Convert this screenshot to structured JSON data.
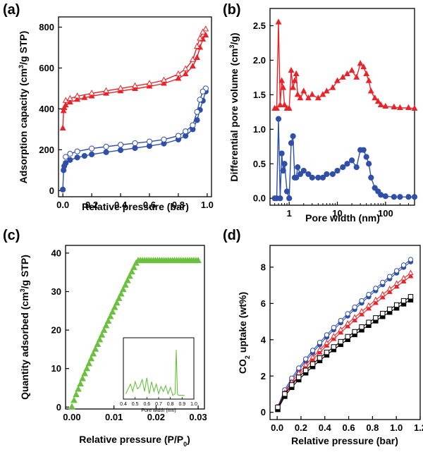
{
  "panels": [
    {
      "label": "(a)",
      "type": "line",
      "xlabel": "Relative pressure (bar)",
      "ylabel_parts": [
        "Adsorption capacity (cm",
        "3",
        "/g STP)"
      ],
      "xlim": [
        -0.03,
        1.03
      ],
      "ylim": [
        -30,
        850
      ],
      "xticks": [
        0.0,
        0.2,
        0.4,
        0.6,
        0.8,
        1.0
      ],
      "xtick_labels": [
        "0.0",
        "0.2",
        "0.4",
        "0.6",
        "0.8",
        "1.0"
      ],
      "yticks": [
        0,
        200,
        400,
        600,
        800
      ],
      "ytick_labels": [
        "0",
        "200",
        "400",
        "600",
        "800"
      ],
      "series": [
        {
          "color": "#e8242a",
          "marker": "triangle",
          "fill": "filled",
          "x": [
            0.0,
            0.005,
            0.01,
            0.02,
            0.05,
            0.1,
            0.15,
            0.2,
            0.3,
            0.4,
            0.5,
            0.6,
            0.7,
            0.8,
            0.85,
            0.9,
            0.93,
            0.95,
            0.97,
            0.99
          ],
          "y": [
            305,
            390,
            405,
            418,
            432,
            445,
            454,
            462,
            475,
            487,
            498,
            510,
            524,
            548,
            570,
            608,
            650,
            700,
            740,
            760
          ]
        },
        {
          "color": "#e8242a",
          "marker": "triangle",
          "fill": "open",
          "x": [
            0.99,
            0.97,
            0.95,
            0.93,
            0.9,
            0.85,
            0.8,
            0.7,
            0.6,
            0.5,
            0.4,
            0.3,
            0.2,
            0.1,
            0.05,
            0.02
          ],
          "y": [
            790,
            775,
            745,
            705,
            640,
            595,
            570,
            540,
            524,
            512,
            500,
            488,
            476,
            462,
            450,
            440
          ]
        },
        {
          "color": "#2f4fa8",
          "marker": "circle",
          "fill": "filled",
          "x": [
            0.0,
            0.005,
            0.01,
            0.02,
            0.05,
            0.1,
            0.15,
            0.2,
            0.3,
            0.4,
            0.5,
            0.6,
            0.7,
            0.8,
            0.85,
            0.9,
            0.93,
            0.95,
            0.97,
            0.99
          ],
          "y": [
            5,
            100,
            120,
            135,
            150,
            162,
            170,
            177,
            188,
            198,
            208,
            218,
            230,
            250,
            268,
            300,
            345,
            395,
            440,
            485
          ]
        },
        {
          "color": "#2f4fa8",
          "marker": "circle",
          "fill": "open",
          "x": [
            0.99,
            0.97,
            0.95,
            0.93,
            0.9,
            0.85,
            0.8,
            0.7,
            0.6,
            0.5,
            0.4,
            0.3,
            0.2,
            0.1,
            0.05,
            0.02
          ],
          "y": [
            500,
            485,
            445,
            385,
            320,
            290,
            268,
            250,
            240,
            232,
            224,
            215,
            206,
            192,
            180,
            165
          ]
        }
      ]
    },
    {
      "label": "(b)",
      "type": "line",
      "xscale": "log",
      "xlabel": "Pore width (nm)",
      "ylabel_parts": [
        "Differential pore volume (cm",
        "3",
        "/g)"
      ],
      "xlim": [
        0.4,
        400
      ],
      "ylim": [
        -0.1,
        2.75
      ],
      "xticks": [
        1,
        10,
        100
      ],
      "xtick_labels": [
        "1",
        "10",
        "100"
      ],
      "yticks": [
        0.0,
        0.5,
        1.0,
        1.5,
        2.0,
        2.5
      ],
      "ytick_labels": [
        "0.0",
        "0.5",
        "1.0",
        "1.5",
        "2.0",
        "2.5"
      ],
      "series": [
        {
          "color": "#e8242a",
          "marker": "triangle",
          "fill": "filled",
          "x": [
            0.5,
            0.55,
            0.6,
            0.65,
            0.7,
            0.75,
            0.8,
            0.9,
            1.0,
            1.1,
            1.2,
            1.3,
            1.4,
            1.5,
            1.7,
            2.0,
            2.5,
            3,
            4,
            5,
            6,
            8,
            10,
            13,
            16,
            20,
            25,
            30,
            35,
            40,
            45,
            50,
            60,
            70,
            80,
            100,
            150,
            200,
            300,
            400
          ],
          "y": [
            1.3,
            1.3,
            2.55,
            1.35,
            1.7,
            1.6,
            1.35,
            1.3,
            1.3,
            1.85,
            1.6,
            1.7,
            1.8,
            1.5,
            1.45,
            1.55,
            1.45,
            1.5,
            1.45,
            1.5,
            1.55,
            1.6,
            1.7,
            1.75,
            1.8,
            1.85,
            1.75,
            1.95,
            1.9,
            1.8,
            1.7,
            1.55,
            1.45,
            1.4,
            1.35,
            1.33,
            1.32,
            1.31,
            1.31,
            1.3
          ]
        },
        {
          "color": "#2f4fa8",
          "marker": "circle",
          "fill": "filled",
          "x": [
            0.5,
            0.55,
            0.6,
            0.65,
            0.7,
            0.75,
            0.8,
            0.9,
            1.0,
            1.1,
            1.2,
            1.3,
            1.4,
            1.5,
            1.7,
            2.0,
            2.5,
            3,
            4,
            5,
            6,
            8,
            10,
            13,
            16,
            20,
            25,
            30,
            35,
            40,
            45,
            50,
            60,
            70,
            80,
            100,
            150,
            200,
            300,
            400
          ],
          "y": [
            0.0,
            0.0,
            1.15,
            0.0,
            0.65,
            0.4,
            0.5,
            0.1,
            0.0,
            0.8,
            0.9,
            0.3,
            0.3,
            0.45,
            0.35,
            0.4,
            0.35,
            0.3,
            0.3,
            0.3,
            0.35,
            0.35,
            0.4,
            0.45,
            0.5,
            0.55,
            0.45,
            0.7,
            0.7,
            0.6,
            0.5,
            0.3,
            0.15,
            0.1,
            0.05,
            0.03,
            0.02,
            0.02,
            0.02,
            0.02
          ]
        }
      ]
    },
    {
      "label": "(c)",
      "type": "scatter",
      "xlabel_parts": [
        "Relative pressure (P/P",
        "0",
        ")"
      ],
      "ylabel_parts": [
        "Quantity adsorbed (cm",
        "3",
        "/g STP)"
      ],
      "xlim": [
        -0.0015,
        0.0315
      ],
      "ylim": [
        -0.5,
        42
      ],
      "xticks": [
        0.0,
        0.01,
        0.02,
        0.03
      ],
      "xtick_labels": [
        "0.00",
        "0.01",
        "0.02",
        "0.03"
      ],
      "yticks": [
        0,
        10,
        20,
        30,
        40
      ],
      "ytick_labels": [
        "0",
        "10",
        "20",
        "30",
        "40"
      ],
      "series": [
        {
          "color": "#6cc040",
          "marker": "triangle",
          "fill": "filled",
          "x_start": 0.0,
          "x_end": 0.03,
          "count": 60,
          "a": 0.0,
          "b": 1680,
          "power": 0.91
        }
      ],
      "inset": {
        "xlabel": "Pore width (nm)",
        "xlim": [
          0.4,
          1.0
        ],
        "xticks": [
          0.4,
          0.5,
          0.6,
          0.7,
          0.8,
          0.9,
          1.0
        ],
        "xtick_labels": [
          "0.4",
          "0.5",
          "0.6",
          "0.7",
          "0.8",
          "0.9",
          "1.0"
        ],
        "color": "#6cc040",
        "x": [
          0.42,
          0.44,
          0.46,
          0.48,
          0.5,
          0.52,
          0.54,
          0.56,
          0.58,
          0.6,
          0.62,
          0.64,
          0.66,
          0.68,
          0.7,
          0.72,
          0.74,
          0.76,
          0.78,
          0.8,
          0.82,
          0.84,
          0.85,
          0.86,
          0.87,
          0.88,
          0.9,
          0.92
        ],
        "y": [
          0.05,
          0.15,
          0.25,
          0.1,
          0.3,
          0.15,
          0.2,
          0.35,
          0.1,
          0.38,
          0.05,
          0.3,
          0.1,
          0.25,
          0.05,
          0.2,
          0.1,
          0.22,
          0.05,
          0.18,
          0.02,
          0.05,
          0.95,
          0.05,
          0.02,
          0.02,
          0.02,
          0.02
        ],
        "ylim": [
          0,
          1.2
        ]
      }
    },
    {
      "label": "(d)",
      "type": "scatter",
      "xlabel": "Relative pressure (bar)",
      "ylabel_parts": [
        "CO",
        "2",
        " uptake (wt%)"
      ],
      "xlim": [
        -0.06,
        1.2
      ],
      "ylim": [
        -0.4,
        9.2
      ],
      "xticks": [
        0.0,
        0.2,
        0.4,
        0.6,
        0.8,
        1.0,
        1.2
      ],
      "xtick_labels": [
        "0.0",
        "0.2",
        "0.4",
        "0.6",
        "0.8",
        "1.0",
        "1.2"
      ],
      "yticks": [
        0,
        2,
        4,
        6,
        8
      ],
      "ytick_labels": [
        "0",
        "2",
        "4",
        "6",
        "8"
      ],
      "series": [
        {
          "color": "#2f4fa8",
          "marker": "circle",
          "fill": "filled",
          "end": 8.3,
          "power": 0.7,
          "count": 20
        },
        {
          "color": "#2f4fa8",
          "marker": "circle",
          "fill": "open",
          "end": 8.3,
          "power": 0.7,
          "count": 20,
          "reverse": true
        },
        {
          "color": "#e8242a",
          "marker": "triangle",
          "fill": "filled",
          "end": 7.5,
          "power": 0.72,
          "count": 20
        },
        {
          "color": "#e8242a",
          "marker": "triangle",
          "fill": "open",
          "end": 7.55,
          "power": 0.72,
          "count": 20,
          "reverse": true
        },
        {
          "color": "#000000",
          "marker": "square",
          "fill": "filled",
          "end": 6.2,
          "power": 0.68,
          "count": 20
        },
        {
          "color": "#000000",
          "marker": "square",
          "fill": "open",
          "end": 6.25,
          "power": 0.68,
          "count": 20,
          "reverse": true
        }
      ]
    }
  ],
  "chart_data": [
    {
      "type": "line",
      "title": "",
      "xlabel": "Relative pressure (bar)",
      "ylabel": "Adsorption capacity (cm3/g STP)",
      "ylim": [
        0,
        800
      ]
    },
    {
      "type": "line",
      "title": "",
      "xlabel": "Pore width (nm)",
      "ylabel": "Differential pore volume (cm3/g)",
      "ylim": [
        0,
        2.5
      ]
    },
    {
      "type": "scatter",
      "title": "",
      "xlabel": "Relative pressure (P/P0)",
      "ylabel": "Quantity adsorbed (cm3/g STP)",
      "ylim": [
        0,
        40
      ]
    },
    {
      "type": "scatter",
      "title": "",
      "xlabel": "Relative pressure (bar)",
      "ylabel": "CO2 uptake (wt%)",
      "ylim": [
        0,
        8
      ]
    }
  ]
}
